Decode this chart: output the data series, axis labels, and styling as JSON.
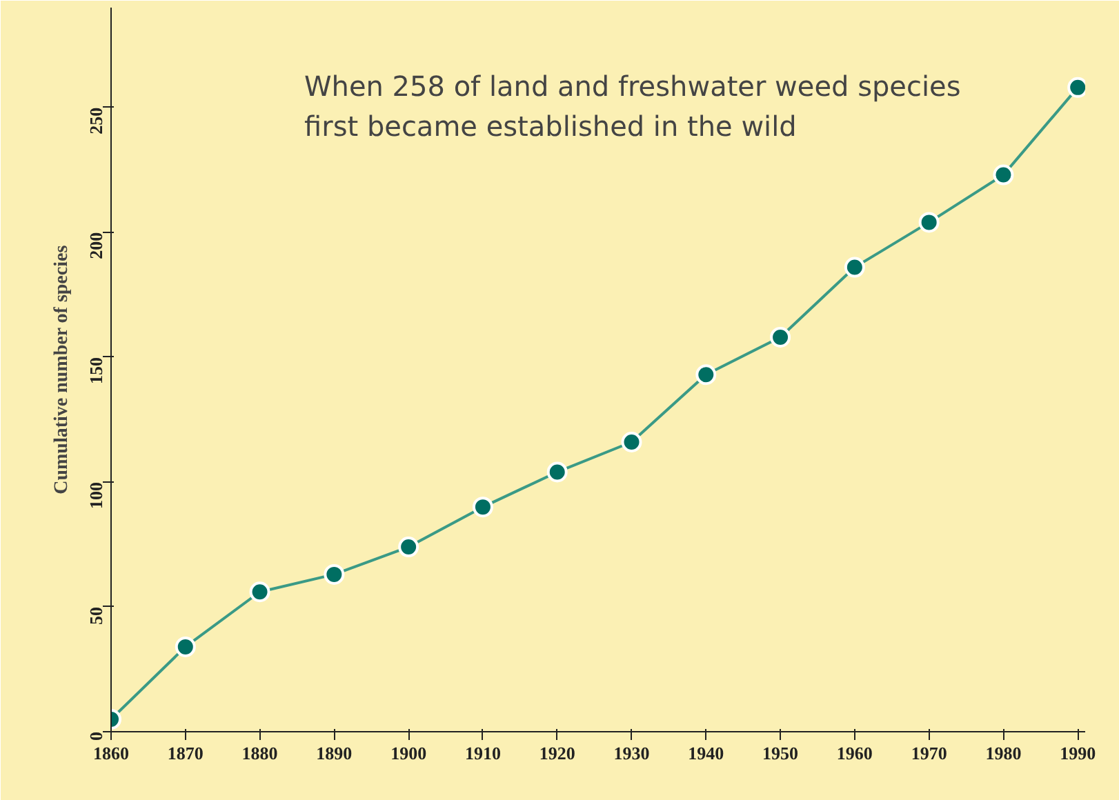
{
  "chart_data": {
    "type": "line",
    "title": "When 258 of land and freshwater weed species\nfirst became established in the wild",
    "ylabel": "Cumulative number of species",
    "x": [
      1860,
      1870,
      1880,
      1890,
      1900,
      1910,
      1920,
      1930,
      1940,
      1950,
      1960,
      1970,
      1980,
      1990
    ],
    "series": [
      {
        "color": "#3a9a86",
        "values": [
          5,
          34,
          56,
          63,
          74,
          90,
          104,
          116,
          143,
          158,
          186,
          204,
          223,
          258
        ]
      }
    ],
    "xlim": [
      1860,
      1991
    ],
    "ylim": [
      0,
      290
    ],
    "xticks": [
      1860,
      1870,
      1880,
      1890,
      1900,
      1910,
      1920,
      1930,
      1940,
      1950,
      1960,
      1970,
      1980,
      1990
    ],
    "yticks": [
      0,
      50,
      100,
      150,
      200,
      250
    ],
    "marker": "circle",
    "line_style": "solid"
  }
}
